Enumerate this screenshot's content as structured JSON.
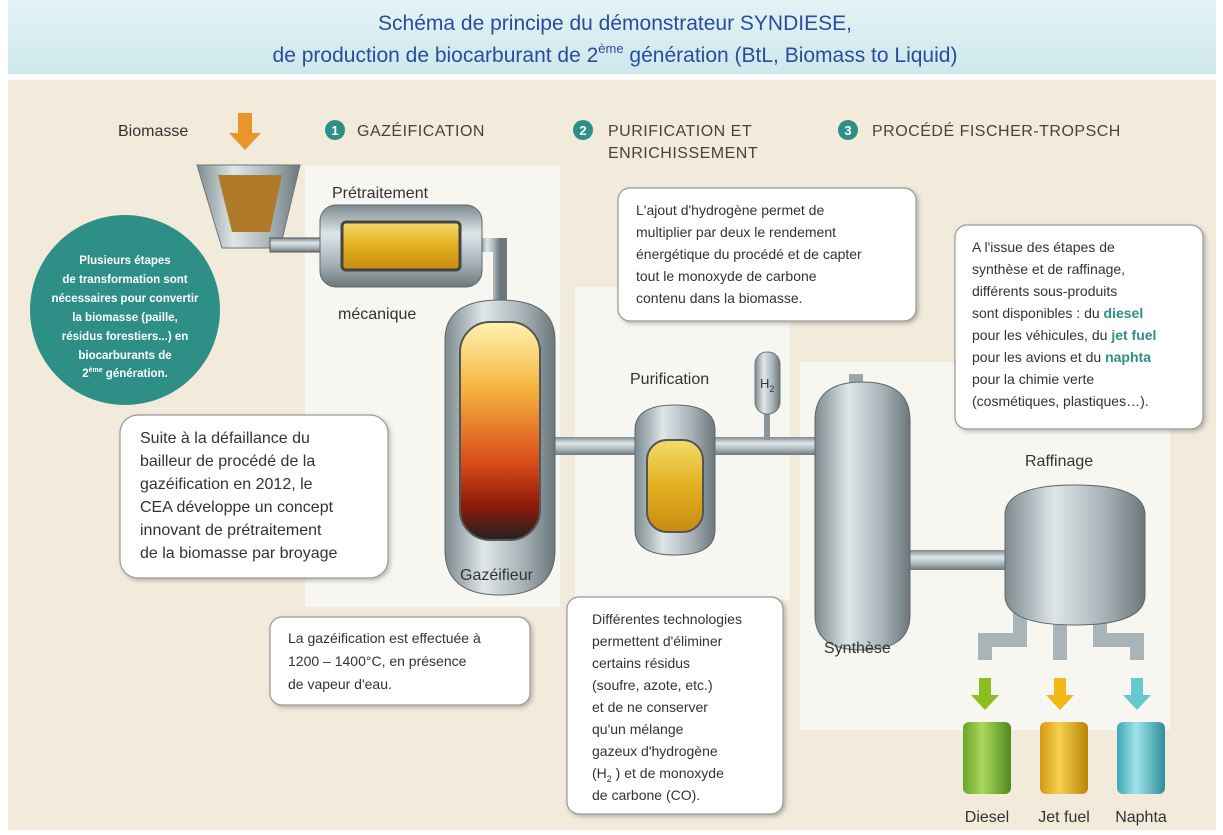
{
  "header": {
    "title_line1": "Schéma de principe du démonstrateur SYNDIESE,",
    "title_line2_start": "de production de biocarburant de 2",
    "title_line2_sup": "ème",
    "title_line2_end": " génération (BtL, Biomass to Liquid)"
  },
  "steps": [
    {
      "number": "1",
      "lines": [
        "GAZÉIFICATION"
      ]
    },
    {
      "number": "2",
      "lines": [
        "PURIFICATION ET",
        "ENRICHISSEMENT"
      ]
    },
    {
      "number": "3",
      "lines": [
        "PROCÉDÉ FISCHER-TROPSCH"
      ]
    }
  ],
  "labels": {
    "biomasse": "Biomasse",
    "pretraitement": "Prétraitement",
    "mecanique": "mécanique",
    "gazeifieur": "Gazéifieur",
    "purification": "Purification",
    "h2_symbol": "H",
    "h2_sub": "2",
    "synthese": "Synthèse",
    "raffinage": "Raffinage",
    "diesel": "Diesel",
    "jet_fuel": "Jet fuel",
    "naphta": "Naphta"
  },
  "circle_note": {
    "lines": [
      "Plusieurs étapes",
      "de transformation sont",
      "nécessaires pour convertir",
      "la biomasse (paille,",
      "résidus forestiers...) en",
      "biocarburants de"
    ],
    "last_start": "2",
    "last_sup": "ème",
    "last_end": " génération."
  },
  "pretreatment_note": {
    "lines": [
      "Suite à la défaillance du",
      "bailleur de procédé de la",
      "gazéification en 2012, le",
      "CEA développe un concept",
      "innovant de prétraitement",
      "de la biomasse par broyage"
    ]
  },
  "gasification_note": {
    "lines": [
      "La gazéification est effectuée à",
      "1200 – 1400°C, en présence",
      "de vapeur d'eau."
    ]
  },
  "hydrogen_note": {
    "lines": [
      "L'ajout d'hydrogène permet de",
      "multiplier par deux le rendement",
      "énergétique du procédé et de capter",
      "tout le monoxyde de carbone",
      "contenu dans la biomasse."
    ]
  },
  "purification_note": {
    "lines": [
      "Différentes technologies",
      "permettent d'éliminer",
      "certains résidus",
      "(soufre, azote, etc.)",
      "et de ne conserver",
      "qu'un mélange",
      "gazeux d'hydrogène"
    ],
    "h2_start": "(H",
    "h2_sub": "2",
    "h2_end": " ) et de monoxyde",
    "last": "de carbone (CO)."
  },
  "products_note": {
    "lines": [
      "A l'issue des étapes de",
      "synthèse et de raffinage,",
      "différents sous-produits"
    ],
    "rich_lines": [
      [
        "sont disponibles : du ",
        "diesel"
      ],
      [
        "pour les véhicules, du ",
        "jet fuel"
      ],
      [
        "pour les avions et du ",
        "naphta"
      ]
    ],
    "end_lines": [
      "pour la chimie verte",
      "(cosmétiques, plastiques…)."
    ]
  }
}
